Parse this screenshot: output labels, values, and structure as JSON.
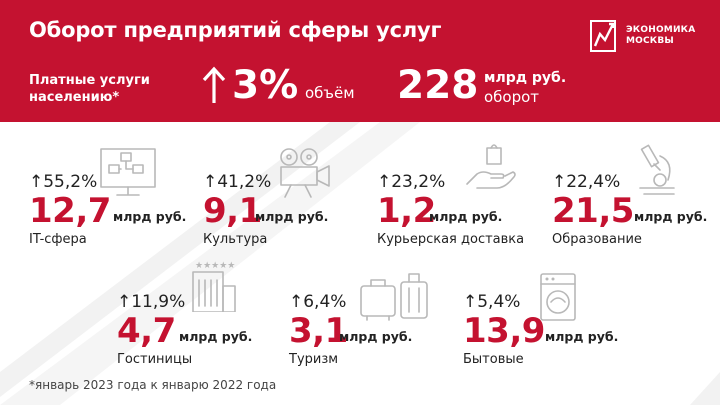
{
  "header": {
    "title": "Оборот предприятий сферы услуг",
    "logo_line1": "ЭКОНОМИКА",
    "logo_line2": "МОСКВЫ",
    "paid_line1": "Платные услуги",
    "paid_line2": "населению*",
    "volume_value": "3%",
    "volume_label": "объём",
    "turnover_value": "228",
    "turnover_unit": "млрд руб.",
    "turnover_label": "оборот"
  },
  "colors": {
    "brand": "#c41230",
    "text": "#222222",
    "icon": "#b8b8b8"
  },
  "cards": [
    {
      "icon": "monitor-icon",
      "growth": "↑55,2%",
      "value": "12,7",
      "unit": "млрд руб.",
      "name": "IT-сфера"
    },
    {
      "icon": "movie-camera-icon",
      "growth": "↑41,2%",
      "value": "9,1",
      "unit": "млрд руб.",
      "name": "Культура"
    },
    {
      "icon": "delivery-hand-icon",
      "growth": "↑23,2%",
      "value": "1,2",
      "unit": "млрд руб.",
      "name": "Курьерская доставка"
    },
    {
      "icon": "microscope-icon",
      "growth": "↑22,4%",
      "value": "21,5",
      "unit": "млрд руб.",
      "name": "Образование"
    },
    {
      "icon": "hotel-icon",
      "growth": "↑11,9%",
      "value": "4,7",
      "unit": "млрд руб.",
      "name": "Гостиницы"
    },
    {
      "icon": "luggage-icon",
      "growth": "↑6,4%",
      "value": "3,1",
      "unit": "млрд руб.",
      "name": "Туризм"
    },
    {
      "icon": "washing-machine-icon",
      "growth": "↑5,4%",
      "value": "13,9",
      "unit": "млрд руб.",
      "name": "Бытовые"
    }
  ],
  "footnote": "*январь 2023 года к январю 2022 года"
}
